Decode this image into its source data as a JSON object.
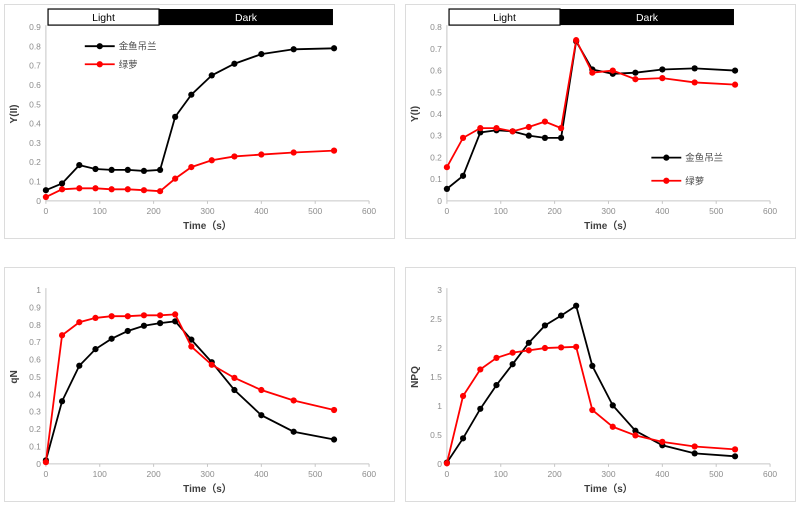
{
  "colors": {
    "series_primary": "#000000",
    "series_secondary": "#ff0000",
    "axis_line": "#c6c6c6",
    "tick_label": "#8c8c8c",
    "axis_title": "#3f3f3f",
    "legend_text": "#4d4d4d",
    "panel_border": "#dcdcdc",
    "bar_light_fill": "#ffffff",
    "bar_light_text": "#000000",
    "bar_dark_fill": "#000000",
    "bar_dark_text": "#ffffff"
  },
  "chart_data": [
    {
      "type": "line",
      "title": "",
      "ylabel": "Y(II)",
      "xlabel": "Time（s）",
      "xlim": [
        0,
        600
      ],
      "xstep": 100,
      "ylim": [
        0,
        0.9
      ],
      "ystep": 0.1,
      "grid": false,
      "legend_position": "top-left",
      "light_dark_bar": {
        "light_label": "Light",
        "dark_label": "Dark",
        "start_t": 4,
        "split_t": 210,
        "end_t": 533
      },
      "x": [
        0,
        30,
        62,
        92,
        122,
        152,
        182,
        212,
        240,
        270,
        308,
        350,
        400,
        460,
        535
      ],
      "series": [
        {
          "name": "金鱼吊兰",
          "color": "#000000",
          "values": [
            0.055,
            0.09,
            0.185,
            0.165,
            0.16,
            0.16,
            0.155,
            0.16,
            0.435,
            0.55,
            0.65,
            0.71,
            0.76,
            0.785,
            0.79
          ]
        },
        {
          "name": "绿萝",
          "color": "#ff0000",
          "values": [
            0.02,
            0.06,
            0.065,
            0.065,
            0.06,
            0.06,
            0.055,
            0.05,
            0.115,
            0.175,
            0.21,
            0.23,
            0.24,
            0.25,
            0.26
          ]
        }
      ]
    },
    {
      "type": "line",
      "title": "",
      "ylabel": "Y(I)",
      "xlabel": "Time（s）",
      "xlim": [
        0,
        600
      ],
      "xstep": 100,
      "ylim": [
        0,
        0.8
      ],
      "ystep": 0.1,
      "grid": false,
      "legend_position": "right",
      "light_dark_bar": {
        "light_label": "Light",
        "dark_label": "Dark",
        "start_t": 4,
        "split_t": 210,
        "end_t": 533
      },
      "x": [
        0,
        30,
        62,
        92,
        122,
        152,
        182,
        212,
        240,
        270,
        308,
        350,
        400,
        460,
        535
      ],
      "series": [
        {
          "name": "金鱼吊兰",
          "color": "#000000",
          "values": [
            0.055,
            0.115,
            0.315,
            0.325,
            0.32,
            0.3,
            0.29,
            0.29,
            0.735,
            0.605,
            0.585,
            0.59,
            0.605,
            0.61,
            0.6
          ]
        },
        {
          "name": "绿萝",
          "color": "#ff0000",
          "values": [
            0.155,
            0.29,
            0.335,
            0.335,
            0.32,
            0.34,
            0.365,
            0.335,
            0.74,
            0.59,
            0.6,
            0.56,
            0.565,
            0.545,
            0.535
          ]
        }
      ]
    },
    {
      "type": "line",
      "title": "",
      "ylabel": "qN",
      "xlabel": "Time（s）",
      "xlim": [
        0,
        600
      ],
      "xstep": 100,
      "ylim": [
        0,
        1
      ],
      "ystep": 0.1,
      "grid": false,
      "legend_position": "none",
      "light_dark_bar": null,
      "x": [
        0,
        30,
        62,
        92,
        122,
        152,
        182,
        212,
        240,
        270,
        308,
        350,
        400,
        460,
        535
      ],
      "series": [
        {
          "name": "金鱼吊兰",
          "color": "#000000",
          "values": [
            0.02,
            0.36,
            0.565,
            0.66,
            0.72,
            0.765,
            0.795,
            0.81,
            0.82,
            0.715,
            0.585,
            0.425,
            0.28,
            0.185,
            0.14
          ]
        },
        {
          "name": "绿萝",
          "color": "#ff0000",
          "values": [
            0.01,
            0.74,
            0.815,
            0.84,
            0.85,
            0.85,
            0.855,
            0.855,
            0.86,
            0.675,
            0.57,
            0.495,
            0.425,
            0.365,
            0.31
          ]
        }
      ]
    },
    {
      "type": "line",
      "title": "",
      "ylabel": "NPQ",
      "xlabel": "Time（s）",
      "xlim": [
        0,
        600
      ],
      "xstep": 100,
      "ylim": [
        0,
        3
      ],
      "ystep": 0.5,
      "grid": false,
      "legend_position": "none",
      "light_dark_bar": null,
      "x": [
        0,
        30,
        62,
        92,
        122,
        152,
        182,
        212,
        240,
        270,
        308,
        350,
        400,
        460,
        535
      ],
      "series": [
        {
          "name": "金鱼吊兰",
          "color": "#000000",
          "values": [
            0.02,
            0.44,
            0.95,
            1.36,
            1.72,
            2.09,
            2.39,
            2.56,
            2.73,
            1.69,
            1.01,
            0.57,
            0.32,
            0.18,
            0.13
          ]
        },
        {
          "name": "绿萝",
          "color": "#ff0000",
          "values": [
            0.01,
            1.17,
            1.63,
            1.83,
            1.92,
            1.96,
            2.0,
            2.01,
            2.02,
            0.93,
            0.64,
            0.49,
            0.38,
            0.3,
            0.25
          ]
        }
      ]
    }
  ]
}
